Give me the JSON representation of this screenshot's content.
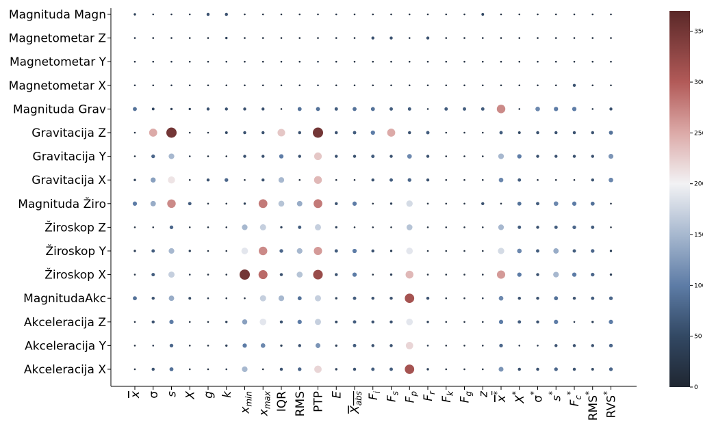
{
  "chart_data": {
    "type": "bubble-heatmap",
    "title": "",
    "xlabel": "",
    "ylabel": "",
    "rows": [
      "Magnituda Magn",
      "Magnetometar Z",
      "Magnetometar Y",
      "Magnetometar X",
      "Magnituda Grav",
      "Gravitacija Z",
      "Gravitacija Y",
      "Gravitacija X",
      "Magnituda Žiro",
      "Žiroskop Z",
      "Žiroskop Y",
      "Žiroskop X",
      "MagnitudaAkc",
      "Akceleracija Z",
      "Akceleracija Y",
      "Akceleracija X"
    ],
    "columns": [
      {
        "base": "x",
        "sup": "",
        "sub": "",
        "bar": true
      },
      {
        "base": "σ",
        "sup": "",
        "sub": "",
        "bar": false
      },
      {
        "base": "s",
        "sup": "",
        "sub": "",
        "bar": false
      },
      {
        "base": "X",
        "sup": "",
        "sub": "",
        "bar": false
      },
      {
        "base": "g",
        "sup": "",
        "sub": "",
        "bar": false
      },
      {
        "base": "k",
        "sup": "",
        "sub": "",
        "bar": false
      },
      {
        "base": "x",
        "sup": "",
        "sub": "min",
        "bar": false
      },
      {
        "base": "x",
        "sup": "",
        "sub": "max",
        "bar": false
      },
      {
        "base": "IQR",
        "sup": "",
        "sub": "",
        "bar": false
      },
      {
        "base": "RMS",
        "sup": "",
        "sub": "",
        "bar": false
      },
      {
        "base": "PTP",
        "sup": "",
        "sub": "",
        "bar": false
      },
      {
        "base": "E",
        "sup": "",
        "sub": "",
        "bar": false
      },
      {
        "base": "X",
        "sup": "",
        "sub": "abs",
        "bar": true
      },
      {
        "base": "F",
        "sup": "",
        "sub": "i",
        "bar": false
      },
      {
        "base": "F",
        "sup": "",
        "sub": "s",
        "bar": false
      },
      {
        "base": "F",
        "sup": "",
        "sub": "p",
        "bar": false
      },
      {
        "base": "F",
        "sup": "",
        "sub": "r",
        "bar": false
      },
      {
        "base": "F",
        "sup": "",
        "sub": "k",
        "bar": false
      },
      {
        "base": "F",
        "sup": "",
        "sub": "g",
        "bar": false
      },
      {
        "base": "z",
        "sup": "",
        "sub": "",
        "bar": false
      },
      {
        "base": "x",
        "sup": "*",
        "sub": "",
        "bar": true
      },
      {
        "base": "X",
        "sup": "*",
        "sub": "",
        "bar": false
      },
      {
        "base": "σ",
        "sup": "*",
        "sub": "",
        "bar": false
      },
      {
        "base": "s",
        "sup": "*",
        "sub": "",
        "bar": false
      },
      {
        "base": "F",
        "sup": "*",
        "sub": "c",
        "bar": false
      },
      {
        "base": "RMS",
        "sup": "*",
        "sub": "",
        "bar": false
      },
      {
        "base": "RVS",
        "sup": "*",
        "sub": "",
        "bar": false
      }
    ],
    "values": [
      [
        40,
        25,
        25,
        25,
        60,
        60,
        20,
        20,
        20,
        20,
        20,
        25,
        20,
        20,
        20,
        20,
        20,
        20,
        20,
        50,
        20,
        20,
        20,
        20,
        20,
        20,
        20
      ],
      [
        25,
        20,
        25,
        20,
        20,
        40,
        20,
        20,
        20,
        20,
        20,
        25,
        20,
        60,
        60,
        30,
        60,
        20,
        20,
        20,
        20,
        20,
        20,
        20,
        20,
        20,
        20
      ],
      [
        20,
        20,
        25,
        20,
        20,
        25,
        20,
        20,
        20,
        20,
        30,
        20,
        20,
        20,
        20,
        20,
        20,
        20,
        20,
        20,
        20,
        20,
        20,
        20,
        20,
        20,
        20
      ],
      [
        25,
        20,
        25,
        20,
        20,
        20,
        20,
        20,
        20,
        20,
        30,
        20,
        20,
        20,
        20,
        20,
        20,
        20,
        20,
        20,
        20,
        20,
        20,
        20,
        60,
        20,
        20
      ],
      [
        90,
        50,
        40,
        40,
        60,
        60,
        60,
        60,
        20,
        90,
        90,
        70,
        90,
        90,
        70,
        70,
        30,
        70,
        70,
        70,
        270,
        30,
        110,
        100,
        100,
        30,
        60
      ],
      [
        20,
        250,
        350,
        20,
        20,
        50,
        60,
        60,
        230,
        60,
        350,
        60,
        70,
        100,
        250,
        60,
        70,
        20,
        20,
        20,
        70,
        50,
        60,
        60,
        60,
        60,
        90
      ],
      [
        20,
        80,
        150,
        30,
        20,
        20,
        60,
        60,
        100,
        60,
        230,
        60,
        60,
        70,
        60,
        110,
        60,
        20,
        20,
        20,
        150,
        100,
        60,
        60,
        60,
        60,
        120
      ],
      [
        40,
        130,
        210,
        20,
        60,
        80,
        20,
        60,
        150,
        20,
        240,
        20,
        20,
        60,
        70,
        80,
        60,
        20,
        20,
        20,
        110,
        70,
        20,
        20,
        20,
        60,
        110
      ],
      [
        100,
        140,
        270,
        70,
        20,
        20,
        40,
        280,
        160,
        140,
        280,
        60,
        100,
        20,
        40,
        180,
        20,
        20,
        20,
        60,
        20,
        90,
        70,
        110,
        100,
        90,
        20
      ],
      [
        20,
        20,
        80,
        20,
        20,
        20,
        150,
        170,
        40,
        70,
        170,
        40,
        20,
        20,
        20,
        160,
        20,
        20,
        20,
        20,
        150,
        70,
        60,
        70,
        80,
        70,
        20
      ],
      [
        40,
        70,
        150,
        40,
        20,
        20,
        190,
        270,
        80,
        150,
        260,
        70,
        100,
        60,
        40,
        190,
        20,
        20,
        20,
        20,
        180,
        110,
        70,
        140,
        70,
        80,
        40
      ],
      [
        25,
        70,
        170,
        30,
        20,
        20,
        350,
        290,
        60,
        160,
        320,
        60,
        100,
        20,
        40,
        240,
        20,
        20,
        20,
        20,
        260,
        100,
        60,
        150,
        100,
        80,
        40
      ],
      [
        90,
        60,
        140,
        50,
        30,
        20,
        20,
        170,
        150,
        90,
        170,
        40,
        70,
        60,
        60,
        310,
        60,
        20,
        20,
        30,
        110,
        60,
        60,
        90,
        60,
        70,
        80
      ],
      [
        20,
        60,
        100,
        20,
        20,
        40,
        130,
        190,
        60,
        100,
        170,
        50,
        70,
        60,
        60,
        190,
        40,
        20,
        20,
        20,
        100,
        70,
        60,
        100,
        30,
        40,
        100
      ],
      [
        20,
        30,
        80,
        20,
        20,
        40,
        100,
        110,
        40,
        60,
        120,
        40,
        70,
        60,
        60,
        220,
        30,
        20,
        20,
        20,
        80,
        30,
        30,
        60,
        60,
        60,
        80
      ],
      [
        20,
        60,
        90,
        20,
        20,
        30,
        150,
        20,
        60,
        80,
        220,
        40,
        60,
        70,
        70,
        310,
        40,
        20,
        20,
        20,
        120,
        60,
        60,
        80,
        60,
        50,
        80
      ]
    ],
    "colorbar": {
      "min": 0,
      "max": 370,
      "ticks": [
        0,
        50,
        100,
        150,
        200,
        250,
        300,
        350
      ],
      "stops": [
        {
          "v": 0,
          "color": "#1f2631"
        },
        {
          "v": 50,
          "color": "#324863"
        },
        {
          "v": 100,
          "color": "#5d7ca6"
        },
        {
          "v": 150,
          "color": "#a7b8cf"
        },
        {
          "v": 200,
          "color": "#f2f2f4"
        },
        {
          "v": 250,
          "color": "#dcaaa8"
        },
        {
          "v": 300,
          "color": "#b25a58"
        },
        {
          "v": 370,
          "color": "#5a2828"
        }
      ]
    }
  }
}
